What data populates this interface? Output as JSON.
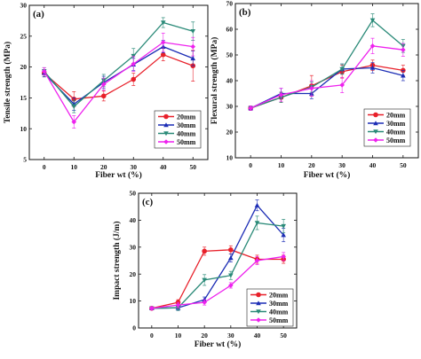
{
  "figure": {
    "background": "#ffffff"
  },
  "series_colors": {
    "20mm": "#e8202a",
    "30mm": "#1c2db5",
    "40mm": "#2a8a78",
    "50mm": "#ee22ee"
  },
  "chart_data": [
    {
      "type": "line",
      "panel_label": "(a)",
      "xlabel": "Fiber wt (%)",
      "ylabel": "Tensile strength (MPa)",
      "x": [
        0,
        10,
        20,
        30,
        40,
        50
      ],
      "xticks": [
        "0",
        "10",
        "20",
        "30",
        "40",
        "50"
      ],
      "xlim": [
        -5,
        55
      ],
      "ylim": [
        5,
        30
      ],
      "yticks": [
        "5",
        "10",
        "15",
        "20",
        "25",
        "30"
      ],
      "legend_position": "lower-right",
      "series": [
        {
          "name": "20mm",
          "marker": "circle",
          "values": [
            19.0,
            14.8,
            15.3,
            18.0,
            22.0,
            20.2
          ],
          "errors": [
            0.6,
            1.2,
            0.8,
            1.0,
            1.0,
            2.5
          ]
        },
        {
          "name": "30mm",
          "marker": "triangle-up",
          "values": [
            19.0,
            14.0,
            17.5,
            20.4,
            23.3,
            21.4
          ],
          "errors": [
            0.6,
            1.0,
            1.0,
            1.0,
            1.0,
            1.2
          ]
        },
        {
          "name": "40mm",
          "marker": "triangle-down",
          "values": [
            19.3,
            13.6,
            17.8,
            21.8,
            27.2,
            25.8
          ],
          "errors": [
            0.6,
            1.0,
            1.0,
            1.2,
            0.8,
            1.5
          ]
        },
        {
          "name": "50mm",
          "marker": "diamond",
          "values": [
            19.3,
            11.1,
            17.2,
            20.5,
            24.0,
            23.3
          ],
          "errors": [
            0.6,
            1.0,
            1.0,
            1.2,
            1.5,
            1.5
          ]
        }
      ]
    },
    {
      "type": "line",
      "panel_label": "(b)",
      "xlabel": "Fiber wt (%)",
      "ylabel": "Flexural strength (MPa)",
      "x": [
        0,
        10,
        20,
        30,
        40,
        50
      ],
      "xticks": [
        "0",
        "10",
        "20",
        "30",
        "40",
        "50"
      ],
      "xlim": [
        -5,
        55
      ],
      "ylim": [
        10,
        70
      ],
      "yticks": [
        "10",
        "20",
        "30",
        "40",
        "50",
        "60",
        "70"
      ],
      "legend_position": "lower-right",
      "series": [
        {
          "name": "20mm",
          "marker": "circle",
          "values": [
            29.3,
            33.5,
            38.0,
            43.5,
            46.0,
            44.0
          ],
          "errors": [
            0.8,
            2.0,
            4.0,
            2.5,
            2.0,
            2.0
          ]
        },
        {
          "name": "30mm",
          "marker": "triangle-up",
          "values": [
            29.3,
            35.0,
            35.0,
            44.5,
            45.0,
            42.0
          ],
          "errors": [
            0.8,
            2.0,
            2.0,
            2.0,
            2.0,
            2.0
          ]
        },
        {
          "name": "40mm",
          "marker": "triangle-down",
          "values": [
            29.3,
            33.5,
            37.5,
            44.5,
            63.5,
            53.5
          ],
          "errors": [
            0.8,
            2.0,
            2.0,
            2.0,
            2.5,
            2.5
          ]
        },
        {
          "name": "50mm",
          "marker": "diamond",
          "values": [
            29.3,
            34.5,
            37.0,
            38.3,
            53.5,
            52.0
          ],
          "errors": [
            0.8,
            2.5,
            3.0,
            3.0,
            3.0,
            2.5
          ]
        }
      ]
    },
    {
      "type": "line",
      "panel_label": "(c)",
      "xlabel": "Fiber wt (%)",
      "ylabel": "Impact strength (J/m)",
      "x": [
        0,
        10,
        20,
        30,
        40,
        50
      ],
      "xticks": [
        "0",
        "10",
        "20",
        "30",
        "40",
        "50"
      ],
      "xlim": [
        -5,
        55
      ],
      "ylim": [
        0,
        50
      ],
      "yticks": [
        "0",
        "10",
        "20",
        "30",
        "40",
        "50"
      ],
      "legend_position": "lower-right",
      "series": [
        {
          "name": "20mm",
          "marker": "circle",
          "values": [
            7.3,
            9.5,
            28.5,
            29.0,
            25.5,
            25.5
          ],
          "errors": [
            0.5,
            1.0,
            1.5,
            1.5,
            1.5,
            1.5
          ]
        },
        {
          "name": "30mm",
          "marker": "triangle-up",
          "values": [
            7.3,
            7.5,
            10.5,
            26.0,
            45.5,
            34.5
          ],
          "errors": [
            0.5,
            1.0,
            1.0,
            1.5,
            2.0,
            2.5
          ]
        },
        {
          "name": "40mm",
          "marker": "triangle-down",
          "values": [
            7.3,
            7.5,
            17.8,
            19.5,
            39.0,
            37.8
          ],
          "errors": [
            0.5,
            1.0,
            2.0,
            1.5,
            2.5,
            2.5
          ]
        },
        {
          "name": "50mm",
          "marker": "diamond",
          "values": [
            7.3,
            8.5,
            9.5,
            15.8,
            25.0,
            26.5
          ],
          "errors": [
            0.5,
            1.0,
            1.0,
            1.0,
            1.5,
            1.5
          ]
        }
      ]
    }
  ]
}
